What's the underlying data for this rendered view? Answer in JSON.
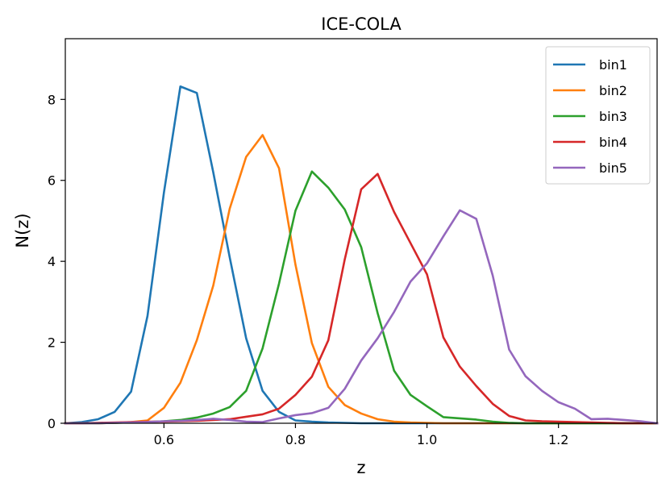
{
  "chart_data": {
    "type": "line",
    "title": "ICE-COLA",
    "xlabel": "z",
    "ylabel": "N(z)",
    "xlim": [
      0.45,
      1.35
    ],
    "ylim": [
      0,
      9.5
    ],
    "xticks": [
      0.6,
      0.8,
      1.0,
      1.2
    ],
    "xtick_labels": [
      "0.6",
      "0.8",
      "1.0",
      "1.2"
    ],
    "yticks": [
      0,
      2,
      4,
      6,
      8
    ],
    "ytick_labels": [
      "0",
      "2",
      "4",
      "6",
      "8"
    ],
    "grid": false,
    "legend_position": "top-right",
    "x": [
      0.45,
      0.475,
      0.5,
      0.525,
      0.55,
      0.575,
      0.6,
      0.625,
      0.65,
      0.675,
      0.7,
      0.725,
      0.75,
      0.775,
      0.8,
      0.825,
      0.85,
      0.875,
      0.9,
      0.925,
      0.95,
      0.975,
      1.0,
      1.025,
      1.05,
      1.075,
      1.1,
      1.125,
      1.15,
      1.175,
      1.2,
      1.225,
      1.25,
      1.275,
      1.3,
      1.325,
      1.35
    ],
    "series": [
      {
        "name": "bin1",
        "color": "#1f77b4",
        "values": [
          0.0,
          0.03,
          0.1,
          0.28,
          0.78,
          2.65,
          5.7,
          8.32,
          8.16,
          6.2,
          4.1,
          2.1,
          0.8,
          0.28,
          0.07,
          0.04,
          0.02,
          0.01,
          0.0,
          0.0,
          0.0,
          0.0,
          0.0,
          0.0,
          0.0,
          0.0,
          0.0,
          0.0,
          0.0,
          0.0,
          0.0,
          0.0,
          0.0,
          0.0,
          0.0,
          0.0,
          0.0
        ]
      },
      {
        "name": "bin2",
        "color": "#ff7f0e",
        "values": [
          0.0,
          0.0,
          0.0,
          0.01,
          0.03,
          0.07,
          0.38,
          1.0,
          2.05,
          3.4,
          5.3,
          6.58,
          7.12,
          6.3,
          3.92,
          1.98,
          0.9,
          0.45,
          0.24,
          0.1,
          0.04,
          0.02,
          0.01,
          0.0,
          0.0,
          0.0,
          0.0,
          0.0,
          0.0,
          0.0,
          0.0,
          0.0,
          0.0,
          0.0,
          0.0,
          0.0,
          0.0
        ]
      },
      {
        "name": "bin3",
        "color": "#2ca02c",
        "values": [
          0.0,
          0.0,
          0.0,
          0.01,
          0.02,
          0.03,
          0.05,
          0.08,
          0.14,
          0.24,
          0.4,
          0.8,
          1.85,
          3.45,
          5.25,
          6.22,
          5.82,
          5.28,
          4.35,
          2.72,
          1.3,
          0.7,
          0.42,
          0.15,
          0.12,
          0.09,
          0.04,
          0.01,
          0.0,
          0.0,
          0.0,
          0.0,
          0.0,
          0.0,
          0.0,
          0.0,
          0.0
        ]
      },
      {
        "name": "bin4",
        "color": "#d62728",
        "values": [
          0.0,
          0.0,
          0.01,
          0.02,
          0.03,
          0.04,
          0.04,
          0.05,
          0.06,
          0.08,
          0.1,
          0.16,
          0.22,
          0.36,
          0.7,
          1.15,
          2.05,
          4.05,
          5.78,
          6.16,
          5.22,
          4.45,
          3.68,
          2.12,
          1.4,
          0.92,
          0.48,
          0.18,
          0.07,
          0.05,
          0.04,
          0.03,
          0.02,
          0.01,
          0.0,
          0.0,
          0.0
        ]
      },
      {
        "name": "bin5",
        "color": "#9467bd",
        "values": [
          0.0,
          0.0,
          0.0,
          0.01,
          0.02,
          0.03,
          0.05,
          0.06,
          0.08,
          0.11,
          0.08,
          0.04,
          0.03,
          0.12,
          0.2,
          0.25,
          0.38,
          0.85,
          1.55,
          2.1,
          2.75,
          3.5,
          3.95,
          4.62,
          5.26,
          5.05,
          3.65,
          1.82,
          1.16,
          0.8,
          0.52,
          0.36,
          0.1,
          0.11,
          0.08,
          0.05,
          0.0
        ]
      }
    ]
  }
}
